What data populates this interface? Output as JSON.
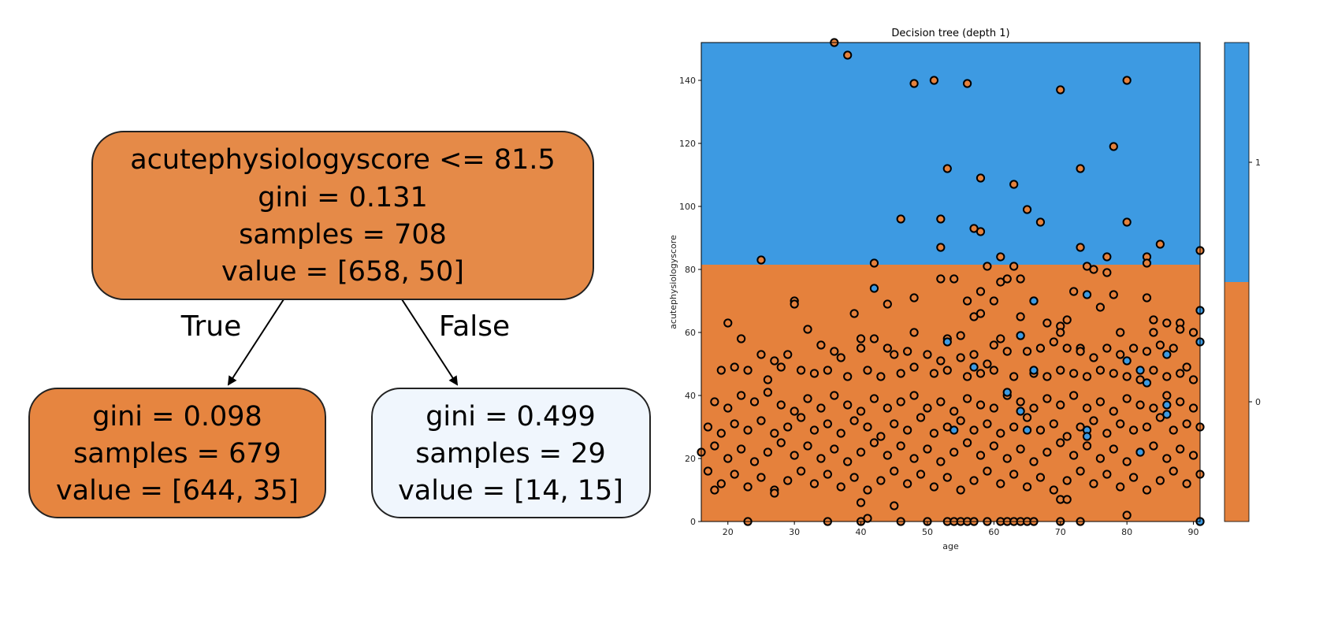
{
  "tree": {
    "root": {
      "lines": [
        "acutephysiologyscore <= 81.5",
        "gini = 0.131",
        "samples = 708",
        "value = [658, 50]"
      ],
      "fill": "#e58a48"
    },
    "left": {
      "lines": [
        "gini = 0.098",
        "samples = 679",
        "value = [644, 35]"
      ],
      "fill": "#e68540"
    },
    "right": {
      "lines": [
        "gini = 0.499",
        "samples = 29",
        "value = [14, 15]"
      ],
      "fill": "#f0f6fd"
    },
    "edge_true": "True",
    "edge_false": "False"
  },
  "colors": {
    "class0": "#e5813c",
    "class1": "#3d9ae2",
    "edge": "#000000"
  },
  "chart_data": {
    "type": "scatter",
    "title": "Decision tree (depth 1)",
    "xlabel": "age",
    "ylabel": "acutephysiologyscore",
    "xlim": [
      16,
      91
    ],
    "ylim": [
      0,
      152
    ],
    "xticks": [
      20,
      30,
      40,
      50,
      60,
      70,
      80,
      90
    ],
    "yticks": [
      0,
      20,
      40,
      60,
      80,
      100,
      120,
      140
    ],
    "threshold": 81.5,
    "colorbar_ticks": [
      "0",
      "1"
    ],
    "regions": [
      {
        "class": 0,
        "y_range": [
          0,
          81.5
        ]
      },
      {
        "class": 1,
        "y_range": [
          81.5,
          152
        ]
      }
    ],
    "points_class0": [
      [
        36,
        152
      ],
      [
        38,
        148
      ],
      [
        48,
        139
      ],
      [
        51,
        140
      ],
      [
        56,
        139
      ],
      [
        80,
        140
      ],
      [
        70,
        137
      ],
      [
        78,
        119
      ],
      [
        53,
        112
      ],
      [
        73,
        112
      ],
      [
        58,
        109
      ],
      [
        63,
        107
      ],
      [
        65,
        99
      ],
      [
        46,
        96
      ],
      [
        52,
        96
      ],
      [
        80,
        95
      ],
      [
        67,
        95
      ],
      [
        57,
        93
      ],
      [
        58,
        92
      ],
      [
        85,
        88
      ],
      [
        52,
        87
      ],
      [
        73,
        87
      ],
      [
        25,
        83
      ],
      [
        42,
        82
      ],
      [
        61,
        84
      ],
      [
        77,
        84
      ],
      [
        91,
        86
      ],
      [
        83,
        84
      ],
      [
        83,
        82
      ],
      [
        74,
        81
      ],
      [
        59,
        81
      ],
      [
        75,
        80
      ],
      [
        77,
        79
      ],
      [
        63,
        81
      ],
      [
        52,
        77
      ],
      [
        54,
        77
      ],
      [
        62,
        77
      ],
      [
        64,
        77
      ],
      [
        61,
        76
      ],
      [
        48,
        71
      ],
      [
        58,
        73
      ],
      [
        56,
        70
      ],
      [
        60,
        70
      ],
      [
        66,
        70
      ],
      [
        30,
        70
      ],
      [
        30,
        69
      ],
      [
        44,
        69
      ],
      [
        72,
        73
      ],
      [
        78,
        72
      ],
      [
        83,
        71
      ],
      [
        39,
        66
      ],
      [
        57,
        65
      ],
      [
        58,
        66
      ],
      [
        64,
        65
      ],
      [
        76,
        68
      ],
      [
        20,
        63
      ],
      [
        86,
        63
      ],
      [
        88,
        63
      ],
      [
        68,
        63
      ],
      [
        70,
        62
      ],
      [
        71,
        64
      ],
      [
        84,
        64
      ],
      [
        32,
        61
      ],
      [
        48,
        60
      ],
      [
        53,
        58
      ],
      [
        55,
        59
      ],
      [
        40,
        58
      ],
      [
        42,
        58
      ],
      [
        22,
        58
      ],
      [
        64,
        59
      ],
      [
        61,
        58
      ],
      [
        70,
        60
      ],
      [
        79,
        60
      ],
      [
        84,
        60
      ],
      [
        88,
        61
      ],
      [
        90,
        60
      ],
      [
        73,
        55
      ],
      [
        25,
        53
      ],
      [
        27,
        51
      ],
      [
        29,
        53
      ],
      [
        34,
        56
      ],
      [
        36,
        54
      ],
      [
        37,
        52
      ],
      [
        40,
        55
      ],
      [
        44,
        55
      ],
      [
        45,
        53
      ],
      [
        47,
        54
      ],
      [
        50,
        53
      ],
      [
        52,
        51
      ],
      [
        55,
        52
      ],
      [
        57,
        53
      ],
      [
        59,
        50
      ],
      [
        60,
        56
      ],
      [
        62,
        54
      ],
      [
        65,
        54
      ],
      [
        67,
        55
      ],
      [
        69,
        57
      ],
      [
        71,
        55
      ],
      [
        73,
        54
      ],
      [
        75,
        52
      ],
      [
        77,
        55
      ],
      [
        79,
        53
      ],
      [
        81,
        55
      ],
      [
        83,
        54
      ],
      [
        85,
        56
      ],
      [
        87,
        55
      ],
      [
        89,
        49
      ],
      [
        19,
        48
      ],
      [
        21,
        49
      ],
      [
        23,
        48
      ],
      [
        26,
        45
      ],
      [
        28,
        49
      ],
      [
        31,
        48
      ],
      [
        33,
        47
      ],
      [
        35,
        48
      ],
      [
        38,
        46
      ],
      [
        41,
        48
      ],
      [
        43,
        46
      ],
      [
        46,
        47
      ],
      [
        48,
        49
      ],
      [
        51,
        47
      ],
      [
        53,
        48
      ],
      [
        56,
        46
      ],
      [
        58,
        47
      ],
      [
        60,
        48
      ],
      [
        63,
        46
      ],
      [
        66,
        47
      ],
      [
        68,
        46
      ],
      [
        70,
        48
      ],
      [
        72,
        47
      ],
      [
        74,
        46
      ],
      [
        76,
        48
      ],
      [
        78,
        47
      ],
      [
        80,
        46
      ],
      [
        82,
        45
      ],
      [
        84,
        48
      ],
      [
        86,
        46
      ],
      [
        88,
        47
      ],
      [
        90,
        45
      ],
      [
        18,
        38
      ],
      [
        20,
        36
      ],
      [
        22,
        40
      ],
      [
        24,
        38
      ],
      [
        26,
        41
      ],
      [
        28,
        37
      ],
      [
        30,
        35
      ],
      [
        32,
        39
      ],
      [
        34,
        36
      ],
      [
        36,
        40
      ],
      [
        38,
        37
      ],
      [
        40,
        35
      ],
      [
        42,
        39
      ],
      [
        44,
        36
      ],
      [
        46,
        38
      ],
      [
        48,
        40
      ],
      [
        50,
        36
      ],
      [
        52,
        38
      ],
      [
        54,
        35
      ],
      [
        56,
        39
      ],
      [
        58,
        37
      ],
      [
        60,
        36
      ],
      [
        62,
        40
      ],
      [
        64,
        38
      ],
      [
        66,
        36
      ],
      [
        68,
        39
      ],
      [
        70,
        37
      ],
      [
        72,
        40
      ],
      [
        74,
        36
      ],
      [
        76,
        38
      ],
      [
        78,
        35
      ],
      [
        80,
        39
      ],
      [
        82,
        37
      ],
      [
        84,
        36
      ],
      [
        86,
        40
      ],
      [
        88,
        38
      ],
      [
        90,
        36
      ],
      [
        17,
        30
      ],
      [
        19,
        28
      ],
      [
        21,
        31
      ],
      [
        23,
        29
      ],
      [
        25,
        32
      ],
      [
        27,
        28
      ],
      [
        29,
        30
      ],
      [
        31,
        33
      ],
      [
        33,
        29
      ],
      [
        35,
        31
      ],
      [
        37,
        28
      ],
      [
        39,
        32
      ],
      [
        41,
        30
      ],
      [
        43,
        27
      ],
      [
        45,
        31
      ],
      [
        47,
        29
      ],
      [
        49,
        33
      ],
      [
        51,
        28
      ],
      [
        53,
        30
      ],
      [
        55,
        32
      ],
      [
        57,
        29
      ],
      [
        59,
        31
      ],
      [
        61,
        28
      ],
      [
        63,
        30
      ],
      [
        65,
        33
      ],
      [
        67,
        29
      ],
      [
        69,
        31
      ],
      [
        71,
        27
      ],
      [
        73,
        30
      ],
      [
        75,
        32
      ],
      [
        77,
        28
      ],
      [
        79,
        31
      ],
      [
        81,
        29
      ],
      [
        83,
        30
      ],
      [
        85,
        33
      ],
      [
        87,
        29
      ],
      [
        89,
        31
      ],
      [
        91,
        30
      ],
      [
        16,
        22
      ],
      [
        18,
        24
      ],
      [
        20,
        20
      ],
      [
        22,
        23
      ],
      [
        24,
        19
      ],
      [
        26,
        22
      ],
      [
        28,
        25
      ],
      [
        30,
        21
      ],
      [
        32,
        24
      ],
      [
        34,
        20
      ],
      [
        36,
        23
      ],
      [
        38,
        19
      ],
      [
        40,
        22
      ],
      [
        42,
        25
      ],
      [
        44,
        21
      ],
      [
        46,
        24
      ],
      [
        48,
        20
      ],
      [
        50,
        23
      ],
      [
        52,
        19
      ],
      [
        54,
        22
      ],
      [
        56,
        25
      ],
      [
        58,
        21
      ],
      [
        60,
        24
      ],
      [
        62,
        20
      ],
      [
        64,
        23
      ],
      [
        66,
        19
      ],
      [
        68,
        22
      ],
      [
        70,
        25
      ],
      [
        72,
        21
      ],
      [
        74,
        24
      ],
      [
        76,
        20
      ],
      [
        78,
        23
      ],
      [
        80,
        19
      ],
      [
        82,
        22
      ],
      [
        84,
        24
      ],
      [
        86,
        20
      ],
      [
        88,
        23
      ],
      [
        90,
        21
      ],
      [
        17,
        16
      ],
      [
        19,
        12
      ],
      [
        21,
        15
      ],
      [
        23,
        11
      ],
      [
        25,
        14
      ],
      [
        27,
        10
      ],
      [
        29,
        13
      ],
      [
        31,
        16
      ],
      [
        33,
        12
      ],
      [
        35,
        15
      ],
      [
        37,
        11
      ],
      [
        39,
        14
      ],
      [
        41,
        10
      ],
      [
        43,
        13
      ],
      [
        45,
        16
      ],
      [
        47,
        12
      ],
      [
        49,
        15
      ],
      [
        51,
        11
      ],
      [
        53,
        14
      ],
      [
        55,
        10
      ],
      [
        57,
        13
      ],
      [
        59,
        16
      ],
      [
        61,
        12
      ],
      [
        63,
        15
      ],
      [
        65,
        11
      ],
      [
        67,
        14
      ],
      [
        69,
        10
      ],
      [
        71,
        13
      ],
      [
        73,
        16
      ],
      [
        75,
        12
      ],
      [
        77,
        15
      ],
      [
        79,
        11
      ],
      [
        81,
        14
      ],
      [
        83,
        10
      ],
      [
        85,
        13
      ],
      [
        87,
        16
      ],
      [
        89,
        12
      ],
      [
        91,
        15
      ],
      [
        18,
        10
      ],
      [
        27,
        9
      ],
      [
        40,
        6
      ],
      [
        45,
        5
      ],
      [
        70,
        7
      ],
      [
        71,
        7
      ],
      [
        80,
        2
      ],
      [
        23,
        0
      ],
      [
        35,
        0
      ],
      [
        40,
        0
      ],
      [
        41,
        1
      ],
      [
        46,
        0
      ],
      [
        50,
        0
      ],
      [
        53,
        0
      ],
      [
        54,
        0
      ],
      [
        55,
        0
      ],
      [
        56,
        0
      ],
      [
        57,
        0
      ],
      [
        59,
        0
      ],
      [
        61,
        0
      ],
      [
        62,
        0
      ],
      [
        63,
        0
      ],
      [
        64,
        0
      ],
      [
        65,
        0
      ],
      [
        66,
        0
      ],
      [
        70,
        0
      ],
      [
        73,
        0
      ],
      [
        91,
        0
      ]
    ],
    "points_class1": [
      [
        42,
        74
      ],
      [
        66,
        70
      ],
      [
        74,
        72
      ],
      [
        91,
        67
      ],
      [
        64,
        59
      ],
      [
        53,
        57
      ],
      [
        91,
        57
      ],
      [
        57,
        49
      ],
      [
        66,
        48
      ],
      [
        82,
        48
      ],
      [
        83,
        44
      ],
      [
        86,
        53
      ],
      [
        62,
        41
      ],
      [
        64,
        35
      ],
      [
        86,
        37
      ],
      [
        86,
        34
      ],
      [
        74,
        29
      ],
      [
        74,
        27
      ],
      [
        54,
        29
      ],
      [
        65,
        29
      ],
      [
        82,
        22
      ],
      [
        80,
        51
      ],
      [
        91,
        0
      ]
    ]
  }
}
